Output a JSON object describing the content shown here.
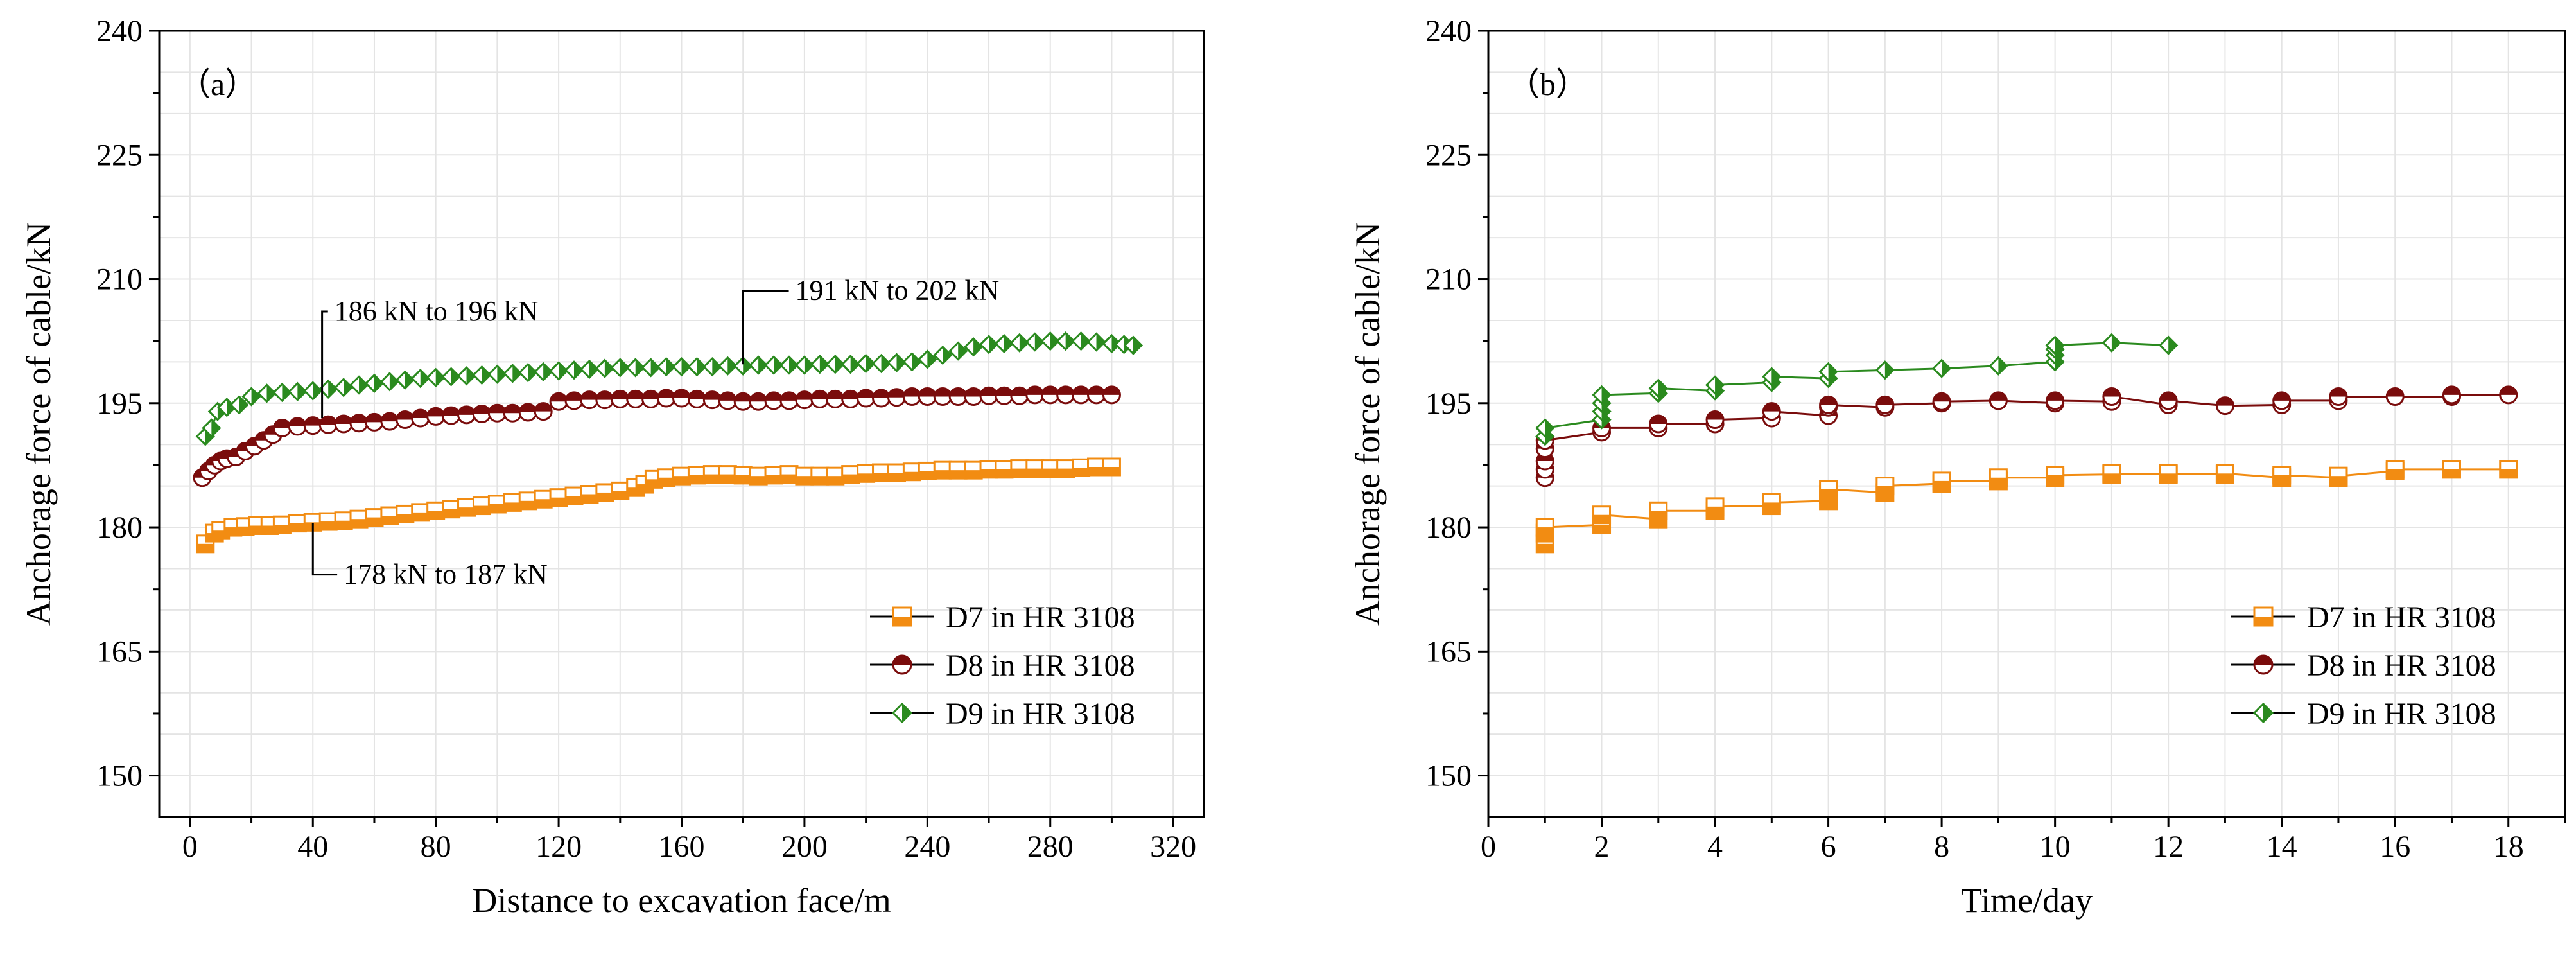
{
  "colors": {
    "D7": "#f28c12",
    "D8": "#7a0c0c",
    "D9": "#2a8a1e",
    "grid": "#e4e4e4",
    "axis": "#000000"
  },
  "chart_data": [
    {
      "type": "scatter",
      "panel_label": "（a）",
      "title": "",
      "xlabel": "Distance to excavation face/m",
      "ylabel": "Anchorage force of cable/kN",
      "xlim": [
        -10,
        330
      ],
      "ylim": [
        145,
        240
      ],
      "xticks": [
        0,
        40,
        80,
        120,
        160,
        200,
        240,
        280,
        320
      ],
      "yticks": [
        150,
        165,
        180,
        195,
        210,
        225,
        240
      ],
      "grid": true,
      "legend_position": "bottom-right",
      "annotations": [
        {
          "text": "186 kN to 196 kN",
          "point": [
            43,
            193.2
          ],
          "text_at": [
            47,
            205
          ]
        },
        {
          "text": "191 kN to 202 kN",
          "point": [
            180,
            199.7
          ],
          "text_at": [
            197,
            207.5
          ]
        },
        {
          "text": "178 kN to 187 kN",
          "point": [
            40,
            180.5
          ],
          "text_at": [
            50,
            173.2
          ]
        }
      ],
      "series": [
        {
          "name": "D7 in HR 3108",
          "marker": "square",
          "x": [
            5,
            8,
            10,
            14,
            18,
            22,
            26,
            30,
            35,
            40,
            45,
            50,
            55,
            60,
            65,
            70,
            75,
            80,
            85,
            90,
            95,
            100,
            105,
            110,
            115,
            120,
            125,
            130,
            135,
            140,
            145,
            148,
            151,
            155,
            160,
            165,
            170,
            175,
            180,
            185,
            190,
            195,
            200,
            205,
            210,
            215,
            220,
            225,
            230,
            235,
            240,
            245,
            250,
            255,
            260,
            265,
            270,
            275,
            280,
            285,
            290,
            295,
            300
          ],
          "y": [
            178.0,
            179.3,
            179.6,
            180.0,
            180.1,
            180.2,
            180.2,
            180.3,
            180.5,
            180.6,
            180.7,
            180.8,
            181.0,
            181.2,
            181.4,
            181.6,
            181.8,
            182.0,
            182.2,
            182.4,
            182.6,
            182.8,
            183.0,
            183.2,
            183.4,
            183.6,
            183.8,
            184.0,
            184.2,
            184.4,
            184.8,
            185.2,
            185.8,
            186.0,
            186.2,
            186.3,
            186.4,
            186.4,
            186.3,
            186.2,
            186.3,
            186.4,
            186.2,
            186.2,
            186.2,
            186.4,
            186.5,
            186.6,
            186.6,
            186.7,
            186.8,
            186.9,
            186.9,
            186.9,
            187.0,
            187.0,
            187.1,
            187.1,
            187.1,
            187.1,
            187.2,
            187.3,
            187.3
          ]
        },
        {
          "name": "D8 in HR 3108",
          "marker": "circle",
          "x": [
            4,
            6,
            8,
            10,
            12,
            15,
            18,
            21,
            24,
            27,
            30,
            35,
            40,
            45,
            50,
            55,
            60,
            65,
            70,
            75,
            80,
            85,
            90,
            95,
            100,
            105,
            110,
            115,
            120,
            125,
            130,
            135,
            140,
            145,
            150,
            155,
            160,
            165,
            170,
            175,
            180,
            185,
            190,
            195,
            200,
            205,
            210,
            215,
            220,
            225,
            230,
            235,
            240,
            245,
            250,
            255,
            260,
            265,
            270,
            275,
            280,
            285,
            290,
            295,
            300
          ],
          "y": [
            186.0,
            186.8,
            187.5,
            188.0,
            188.3,
            188.5,
            189.2,
            189.8,
            190.5,
            191.2,
            192.0,
            192.2,
            192.3,
            192.4,
            192.5,
            192.6,
            192.7,
            192.8,
            193.0,
            193.2,
            193.4,
            193.5,
            193.6,
            193.7,
            193.8,
            193.8,
            193.9,
            194.0,
            195.2,
            195.3,
            195.4,
            195.4,
            195.5,
            195.5,
            195.5,
            195.6,
            195.6,
            195.5,
            195.4,
            195.3,
            195.2,
            195.2,
            195.3,
            195.3,
            195.4,
            195.5,
            195.5,
            195.5,
            195.6,
            195.6,
            195.7,
            195.8,
            195.8,
            195.8,
            195.8,
            195.8,
            195.9,
            195.9,
            195.9,
            196.0,
            196.0,
            196.0,
            196.0,
            196.0,
            196.0
          ]
        },
        {
          "name": "D9 in HR 3108",
          "marker": "diamond",
          "x": [
            5,
            7,
            9,
            12,
            16,
            20,
            25,
            30,
            35,
            40,
            45,
            50,
            55,
            60,
            65,
            70,
            75,
            80,
            85,
            90,
            95,
            100,
            105,
            110,
            115,
            120,
            125,
            130,
            135,
            140,
            145,
            150,
            155,
            160,
            165,
            170,
            175,
            180,
            185,
            190,
            195,
            200,
            205,
            210,
            215,
            220,
            225,
            230,
            235,
            240,
            245,
            250,
            255,
            260,
            265,
            270,
            275,
            280,
            285,
            290,
            295,
            300,
            304,
            307
          ],
          "y": [
            191.0,
            192.0,
            194.0,
            194.5,
            194.8,
            195.8,
            196.2,
            196.3,
            196.4,
            196.5,
            196.7,
            196.9,
            197.2,
            197.4,
            197.6,
            197.8,
            198.0,
            198.1,
            198.2,
            198.3,
            198.4,
            198.5,
            198.6,
            198.7,
            198.8,
            198.9,
            199.0,
            199.1,
            199.2,
            199.3,
            199.3,
            199.3,
            199.4,
            199.4,
            199.4,
            199.4,
            199.5,
            199.5,
            199.6,
            199.6,
            199.6,
            199.6,
            199.7,
            199.7,
            199.7,
            199.8,
            199.8,
            199.9,
            200.0,
            200.3,
            200.8,
            201.3,
            201.8,
            202.1,
            202.2,
            202.3,
            202.4,
            202.5,
            202.5,
            202.5,
            202.4,
            202.2,
            202.1,
            202.0
          ]
        }
      ]
    },
    {
      "type": "scatter",
      "panel_label": "（b）",
      "title": "",
      "xlabel": "Time/day",
      "ylabel": "Anchorage force of cable/kN",
      "xlim": [
        0,
        19
      ],
      "ylim": [
        145,
        240
      ],
      "xticks": [
        0,
        2,
        4,
        6,
        8,
        10,
        12,
        14,
        16,
        18
      ],
      "yticks": [
        150,
        165,
        180,
        195,
        210,
        225,
        240
      ],
      "grid": true,
      "legend_position": "bottom-right",
      "annotations": [],
      "series": [
        {
          "name": "D7 in HR 3108",
          "marker": "square",
          "x": [
            1,
            1,
            1,
            2,
            2,
            3,
            3,
            4,
            4,
            5,
            5,
            6,
            6,
            6,
            7,
            7,
            8,
            8,
            9,
            9,
            10,
            10,
            11,
            11,
            12,
            12,
            13,
            13,
            14,
            14,
            15,
            15,
            16,
            16,
            17,
            18
          ],
          "y": [
            178.0,
            179.3,
            180.0,
            180.3,
            181.5,
            181.0,
            182.0,
            182.0,
            182.5,
            182.6,
            183.0,
            183.2,
            184.0,
            184.6,
            184.2,
            185.0,
            185.3,
            185.6,
            185.6,
            186.0,
            186.0,
            186.3,
            186.4,
            186.5,
            186.4,
            186.5,
            186.4,
            186.5,
            186.0,
            186.3,
            186.0,
            186.2,
            186.8,
            187.0,
            187.0,
            187.0
          ]
        },
        {
          "name": "D8 in HR 3108",
          "marker": "circle",
          "x": [
            1,
            1,
            1,
            1,
            1,
            2,
            2,
            3,
            3,
            4,
            4,
            5,
            5,
            6,
            6,
            6,
            7,
            7,
            8,
            8,
            9,
            10,
            10,
            11,
            11,
            12,
            12,
            13,
            14,
            14,
            15,
            15,
            16,
            17,
            17,
            18
          ],
          "y": [
            186.0,
            187.0,
            188.0,
            189.5,
            190.5,
            191.5,
            192.0,
            192.0,
            192.5,
            192.5,
            193.0,
            193.2,
            194.0,
            193.5,
            194.5,
            194.8,
            194.5,
            194.8,
            195.0,
            195.2,
            195.3,
            195.0,
            195.3,
            195.2,
            195.8,
            194.8,
            195.3,
            194.7,
            194.8,
            195.3,
            195.3,
            195.8,
            195.8,
            195.8,
            196.0,
            196.0
          ]
        },
        {
          "name": "D9 in HR 3108",
          "marker": "diamond",
          "x": [
            1,
            1,
            2,
            2,
            2,
            2,
            3,
            3,
            4,
            4,
            5,
            5,
            6,
            6,
            7,
            8,
            9,
            10,
            10,
            10,
            10,
            11,
            12
          ],
          "y": [
            191.0,
            192.0,
            193.0,
            194.0,
            195.0,
            196.0,
            196.2,
            196.8,
            196.5,
            197.2,
            197.5,
            198.2,
            198.0,
            198.8,
            199.0,
            199.2,
            199.5,
            200.0,
            200.8,
            201.5,
            202.0,
            202.3,
            202.0
          ]
        }
      ]
    }
  ]
}
